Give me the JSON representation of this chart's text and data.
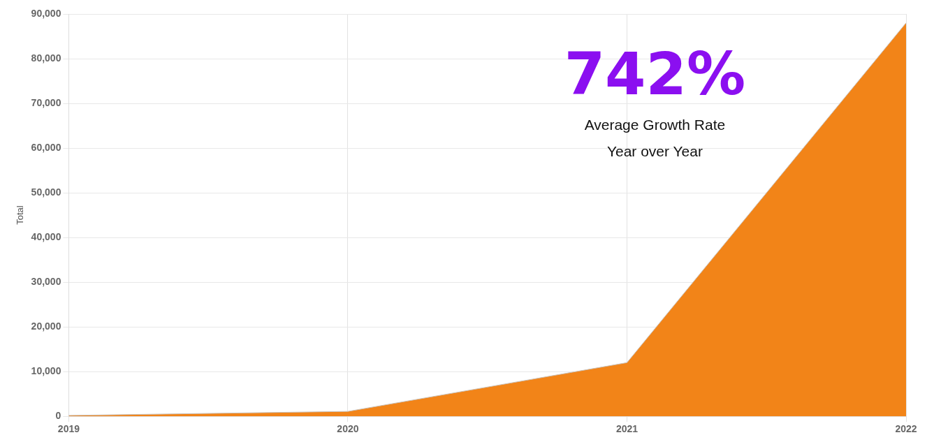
{
  "chart_data": {
    "type": "area",
    "ylabel": "Total",
    "categories": [
      "2019",
      "2020",
      "2021",
      "2022"
    ],
    "series": [
      {
        "color": "#f28418",
        "values": [
          200,
          1100,
          12000,
          88000
        ]
      }
    ],
    "ylim": [
      0,
      90000
    ],
    "yticks": [
      0,
      {
        "value": 10000,
        "label": "10,000"
      },
      {
        "value": 20000,
        "label": "20,000"
      },
      {
        "value": 30000,
        "label": "30,000"
      },
      {
        "value": 40000,
        "label": "40,000"
      },
      {
        "value": 50000,
        "label": "50,000"
      },
      {
        "value": 60000,
        "label": "60,000"
      },
      {
        "value": 70000,
        "label": "70,000"
      },
      {
        "value": 80000,
        "label": "80,000"
      },
      {
        "value": 90000,
        "label": "90,000"
      }
    ],
    "grid": true,
    "legend": false,
    "marker": "none",
    "annotations": [
      "742%",
      "Average Growth Rate",
      "Year over Year"
    ]
  }
}
